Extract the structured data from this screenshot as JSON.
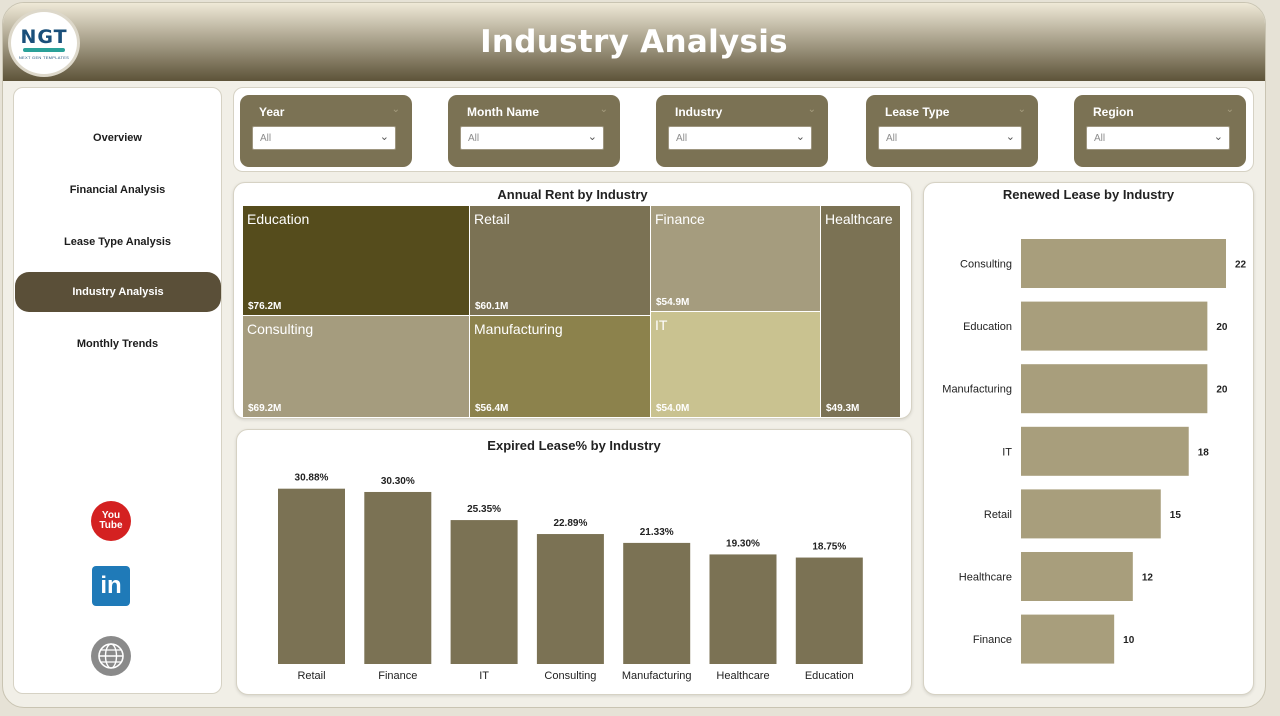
{
  "header": {
    "title": "Industry Analysis",
    "logo_text": "NGT",
    "logo_subtext": "NEXT GEN TEMPLATES"
  },
  "sidebar": {
    "items": [
      {
        "label": "Overview",
        "active": false
      },
      {
        "label": "Financial Analysis",
        "active": false
      },
      {
        "label": "Lease Type Analysis",
        "active": false
      },
      {
        "label": "Industry Analysis",
        "active": true
      },
      {
        "label": "Monthly Trends",
        "active": false
      }
    ],
    "social": {
      "youtube_line1": "You",
      "youtube_line2": "Tube",
      "linkedin": "in"
    }
  },
  "filters": [
    {
      "label": "Year",
      "value": "All"
    },
    {
      "label": "Month Name",
      "value": "All"
    },
    {
      "label": "Industry",
      "value": "All"
    },
    {
      "label": "Lease Type",
      "value": "All"
    },
    {
      "label": "Region",
      "value": "All"
    }
  ],
  "colors": {
    "accent": "#5a4f38",
    "slicer": "#7b7254",
    "bar_dark": "#7b7254",
    "bar_light": "#a89e7c",
    "header_dark": "#5d5339",
    "treemap": {
      "Education": "#554c1c",
      "Retail": "#7b7254",
      "Finance": "#a59c7e",
      "Healthcare": "#7b7254",
      "Consulting": "#a59c7e",
      "Manufacturing": "#8c824c",
      "IT": "#c9c290"
    }
  },
  "chart_data": [
    {
      "type": "treemap",
      "title": "Annual Rent by Industry",
      "categories": [
        "Education",
        "Consulting",
        "Retail",
        "Manufacturing",
        "Finance",
        "IT",
        "Healthcare"
      ],
      "values": [
        76.2,
        69.2,
        60.1,
        56.4,
        54.9,
        54.0,
        49.3
      ],
      "labels": [
        "$76.2M",
        "$69.2M",
        "$60.1M",
        "$56.4M",
        "$54.9M",
        "$54.0M",
        "$49.3M"
      ]
    },
    {
      "type": "bar",
      "title": "Expired Lease% by Industry",
      "categories": [
        "Retail",
        "Finance",
        "IT",
        "Consulting",
        "Manufacturing",
        "Healthcare",
        "Education"
      ],
      "values": [
        30.88,
        30.3,
        25.35,
        22.89,
        21.33,
        19.3,
        18.75
      ],
      "labels": [
        "30.88%",
        "30.30%",
        "25.35%",
        "22.89%",
        "21.33%",
        "19.30%",
        "18.75%"
      ]
    },
    {
      "type": "bar",
      "orientation": "horizontal",
      "title": "Renewed Lease by Industry",
      "categories": [
        "Consulting",
        "Education",
        "Manufacturing",
        "IT",
        "Retail",
        "Healthcare",
        "Finance"
      ],
      "values": [
        22,
        20,
        20,
        18,
        15,
        12,
        10
      ]
    }
  ]
}
